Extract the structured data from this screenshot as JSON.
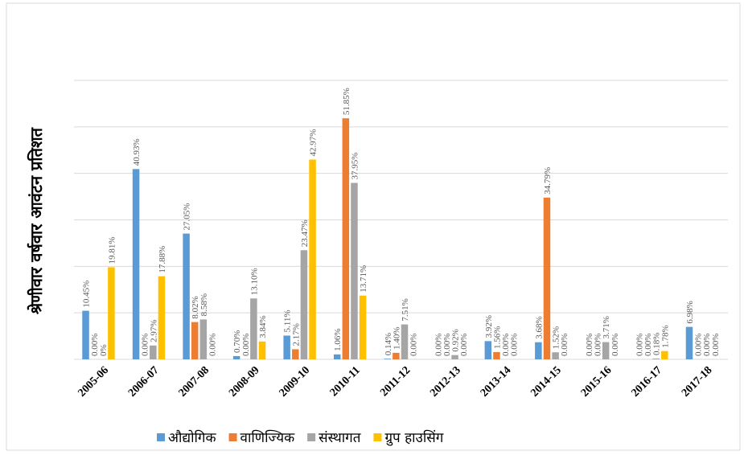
{
  "chart_data": {
    "type": "bar",
    "y_label": "श्रेणीवार वर्षवार आवंटन प्रतिशत",
    "categories": [
      "2005-06",
      "2006-07",
      "2007-08",
      "2008-09",
      "2009-10",
      "2010-11",
      "2011-12",
      "2012-13",
      "2013-14",
      "2014-15",
      "2015-16",
      "2016-17",
      "2017-18"
    ],
    "series": [
      {
        "name": "औद्योगिक",
        "color": "#5b9bd5",
        "values": [
          10.45,
          40.93,
          27.05,
          0.7,
          5.11,
          1.06,
          0.14,
          0,
          3.92,
          3.68,
          0,
          0,
          6.98
        ],
        "value_labels": [
          "10.45%",
          "40.93%",
          "27.05%",
          "0.70%",
          "5.11%",
          "1.06%",
          "0.14%",
          "0.00%",
          "3.92%",
          "3.68%",
          "0.00%",
          "0.00%",
          "6.98%"
        ]
      },
      {
        "name": "वाणिज्यिक",
        "color": "#ed7d31",
        "values": [
          0,
          0,
          8.02,
          0,
          2.17,
          51.85,
          1.4,
          0,
          1.56,
          34.79,
          0,
          0,
          0
        ],
        "value_labels": [
          "0.00%",
          "0.00%",
          "8.02%",
          "0.00%",
          "2.17%",
          "51.85%",
          "1.40%",
          "0.00%",
          "1.56%",
          "34.79%",
          "0.00%",
          "0.00%",
          "0.00%"
        ]
      },
      {
        "name": "संस्थागत",
        "color": "#a5a5a5",
        "values": [
          0,
          2.97,
          8.58,
          13.1,
          23.47,
          37.95,
          7.51,
          0.92,
          0,
          1.52,
          3.71,
          0.18,
          0
        ],
        "value_labels": [
          "0%",
          "2.97%",
          "8.58%",
          "13.10%",
          "23.47%",
          "37.95%",
          "7.51%",
          "0.92%",
          "0.00%",
          "1.52%",
          "3.71%",
          "0.18%",
          "0.00%"
        ]
      },
      {
        "name": "ग्रुप हाउसिंग",
        "color": "#ffc000",
        "values": [
          19.81,
          17.88,
          0,
          3.84,
          42.97,
          13.71,
          0,
          0,
          0,
          0,
          0,
          1.78,
          0
        ],
        "value_labels": [
          "19.81%",
          "17.88%",
          "0.00%",
          "3.84%",
          "42.97%",
          "13.71%",
          "0.00%",
          "0.00%",
          "0.00%",
          "0.00%",
          "0.00%",
          "1.78%",
          "0.00%"
        ]
      }
    ],
    "ylim": [
      0,
      60
    ],
    "gridlines": [
      0,
      10,
      20,
      30,
      40,
      50,
      60
    ],
    "legend": "bottom"
  }
}
